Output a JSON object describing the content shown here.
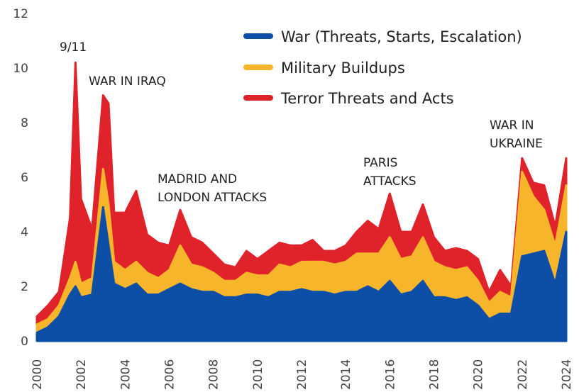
{
  "chart_data": {
    "type": "area",
    "stacked": true,
    "title": "",
    "xlabel": "",
    "ylabel": "",
    "xlim": [
      2000,
      2024
    ],
    "ylim": [
      0,
      12
    ],
    "grid": false,
    "legend_position": "top-right",
    "x_ticks": [
      2000,
      2002,
      2004,
      2006,
      2008,
      2010,
      2012,
      2014,
      2016,
      2018,
      2020,
      2022,
      2024
    ],
    "y_ticks": [
      0,
      2,
      4,
      6,
      8,
      10,
      12
    ],
    "x": [
      2000.0,
      2000.5,
      2001.0,
      2001.5,
      2001.75,
      2002.0,
      2002.5,
      2003.0,
      2003.25,
      2003.5,
      2004.0,
      2004.5,
      2005.0,
      2005.5,
      2006.0,
      2006.5,
      2007.0,
      2007.5,
      2008.0,
      2008.5,
      2009.0,
      2009.5,
      2010.0,
      2010.5,
      2011.0,
      2011.5,
      2012.0,
      2012.5,
      2013.0,
      2013.5,
      2014.0,
      2014.5,
      2015.0,
      2015.5,
      2016.0,
      2016.5,
      2017.0,
      2017.5,
      2018.0,
      2018.5,
      2019.0,
      2019.5,
      2020.0,
      2020.5,
      2021.0,
      2021.5,
      2022.0,
      2022.5,
      2023.0,
      2023.5,
      2024.0
    ],
    "series": [
      {
        "name": "War (Threats, Starts, Escalation)",
        "color": "#0d4ea6",
        "values": [
          0.3,
          0.5,
          0.9,
          1.7,
          2.0,
          1.6,
          1.7,
          4.9,
          3.5,
          2.1,
          1.9,
          2.1,
          1.7,
          1.7,
          1.9,
          2.1,
          1.9,
          1.8,
          1.8,
          1.6,
          1.6,
          1.7,
          1.7,
          1.6,
          1.8,
          1.8,
          1.9,
          1.8,
          1.8,
          1.7,
          1.8,
          1.8,
          2.0,
          1.8,
          2.2,
          1.7,
          1.8,
          2.2,
          1.6,
          1.6,
          1.5,
          1.6,
          1.3,
          0.8,
          1.0,
          1.0,
          3.1,
          3.2,
          3.3,
          2.1,
          4.0
        ]
      },
      {
        "name": "Military Buildups",
        "color": "#f7b52b",
        "values": [
          0.3,
          0.3,
          0.4,
          0.6,
          0.9,
          0.5,
          0.6,
          1.4,
          1.5,
          0.8,
          0.7,
          0.8,
          0.8,
          0.6,
          0.7,
          1.4,
          0.9,
          0.9,
          0.7,
          0.6,
          0.6,
          0.8,
          0.7,
          0.8,
          1.0,
          0.9,
          1.0,
          1.1,
          1.1,
          1.1,
          1.1,
          1.4,
          1.2,
          1.4,
          1.6,
          1.3,
          1.3,
          1.6,
          1.3,
          1.1,
          1.1,
          1.1,
          0.9,
          0.6,
          0.8,
          0.6,
          3.1,
          2.1,
          1.5,
          1.4,
          1.7
        ]
      },
      {
        "name": "Terror Threats and Acts",
        "color": "#e0222b",
        "values": [
          0.3,
          0.5,
          0.5,
          2.2,
          7.3,
          3.1,
          1.8,
          2.7,
          3.7,
          1.8,
          2.1,
          2.6,
          1.4,
          1.3,
          0.9,
          1.3,
          1.0,
          0.9,
          0.7,
          0.6,
          0.5,
          0.8,
          0.6,
          0.9,
          0.8,
          0.8,
          0.6,
          0.8,
          0.4,
          0.5,
          0.6,
          0.8,
          1.2,
          0.9,
          1.6,
          1.0,
          0.9,
          1.2,
          0.9,
          0.6,
          0.8,
          0.6,
          0.8,
          0.4,
          0.8,
          0.4,
          0.5,
          0.5,
          0.9,
          0.7,
          1.0
        ]
      }
    ],
    "annotations": [
      {
        "text": "9/11",
        "x": 2001.75
      },
      {
        "text": "WAR IN IRAQ",
        "x": 2003.1
      },
      {
        "text": "MADRID AND",
        "x": 2005.9
      },
      {
        "text": "LONDON ATTACKS",
        "x": 2005.9
      },
      {
        "text": "PARIS",
        "x": 2015.3
      },
      {
        "text": "ATTACKS",
        "x": 2015.3
      },
      {
        "text": "WAR IN",
        "x": 2021.6
      },
      {
        "text": "UKRAINE",
        "x": 2021.6
      }
    ]
  }
}
